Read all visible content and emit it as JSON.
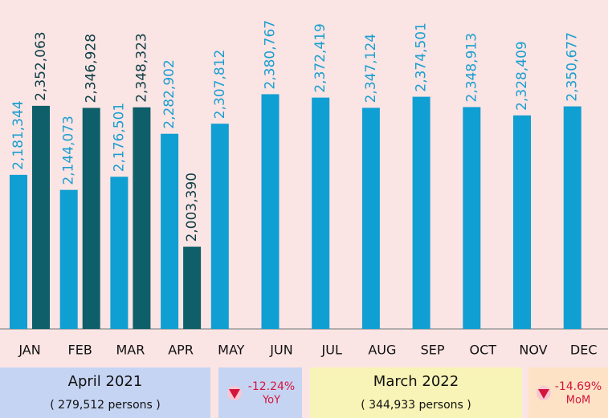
{
  "chart_data": {
    "type": "bar",
    "categories": [
      "JAN",
      "FEB",
      "MAR",
      "APR",
      "MAY",
      "JUN",
      "JUL",
      "AUG",
      "SEP",
      "OCT",
      "NOV",
      "DEC"
    ],
    "series": [
      {
        "color": "#0f9fd2",
        "label_color": "#1a9fd0",
        "values": [
          2181344,
          2144073,
          2176501,
          2282902,
          2307812,
          2380767,
          2372419,
          2347124,
          2374501,
          2348913,
          2328409,
          2350677
        ],
        "value_labels": [
          "2,181,344",
          "2,144,073",
          "2,176,501",
          "2,282,902",
          "2,307,812",
          "2,380,767",
          "2,372,419",
          "2,347,124",
          "2,374,501",
          "2,348,913",
          "2,328,409",
          "2,350,677"
        ]
      },
      {
        "color": "#0e5f69",
        "label_color": "#0d3f47",
        "values": [
          2352063,
          2346928,
          2348323,
          2003390,
          null,
          null,
          null,
          null,
          null,
          null,
          null,
          null
        ],
        "value_labels": [
          "2,352,063",
          "2,346,928",
          "2,348,323",
          "2,003,390",
          null,
          null,
          null,
          null,
          null,
          null,
          null,
          null
        ]
      }
    ],
    "ylim": [
      1800000,
      2600000
    ]
  },
  "summary": {
    "left": {
      "title": "April 2021",
      "detail": "( 279,512 persons )",
      "change": "-12.24%",
      "change_label": "YoY"
    },
    "right": {
      "title": "March 2022",
      "detail": "( 344,933 persons )",
      "change": "-14.69%",
      "change_label": "MoM"
    }
  }
}
